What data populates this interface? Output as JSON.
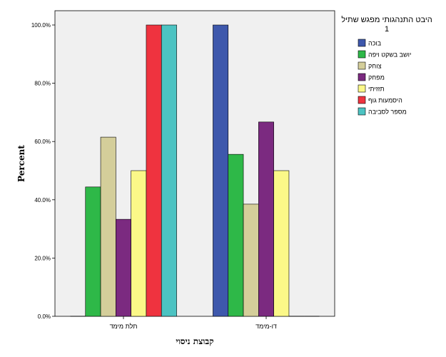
{
  "chart_data": {
    "type": "bar",
    "xlabel": "קבוצת ניסוי",
    "ylabel": "Percent",
    "ylim": [
      0,
      100
    ],
    "yticks": [
      0,
      20,
      40,
      60,
      80,
      100
    ],
    "ytick_labels": [
      "0.0%",
      "20.0%",
      "40.0%",
      "60.0%",
      "80.0%",
      "100.0%"
    ],
    "categories": [
      "תלת מימד",
      "דו-מימד"
    ],
    "legend_title_lines": [
      "היבט התנהגותי מפגש שתיל",
      "1"
    ],
    "legend_position": "right",
    "grid": false,
    "background_color": "#f0f0f0",
    "series": [
      {
        "name": "בוכה",
        "color": "#3e58ac",
        "values": [
          0,
          100
        ]
      },
      {
        "name": "יושב בשקט ויפה",
        "color": "#2eb848",
        "values": [
          44.4,
          55.6
        ]
      },
      {
        "name": "צוחק",
        "color": "#d4ce9a",
        "values": [
          61.5,
          38.5
        ]
      },
      {
        "name": "מפחק",
        "color": "#7b2a80",
        "values": [
          33.3,
          66.7
        ]
      },
      {
        "name": "תזזיתי",
        "color": "#fbf888",
        "values": [
          50,
          50
        ]
      },
      {
        "name": "היסמעות גוף",
        "color": "#ef333f",
        "values": [
          100,
          0
        ]
      },
      {
        "name": "מספר לסביבה",
        "color": "#4cc3c2",
        "values": [
          100,
          0
        ]
      }
    ]
  }
}
